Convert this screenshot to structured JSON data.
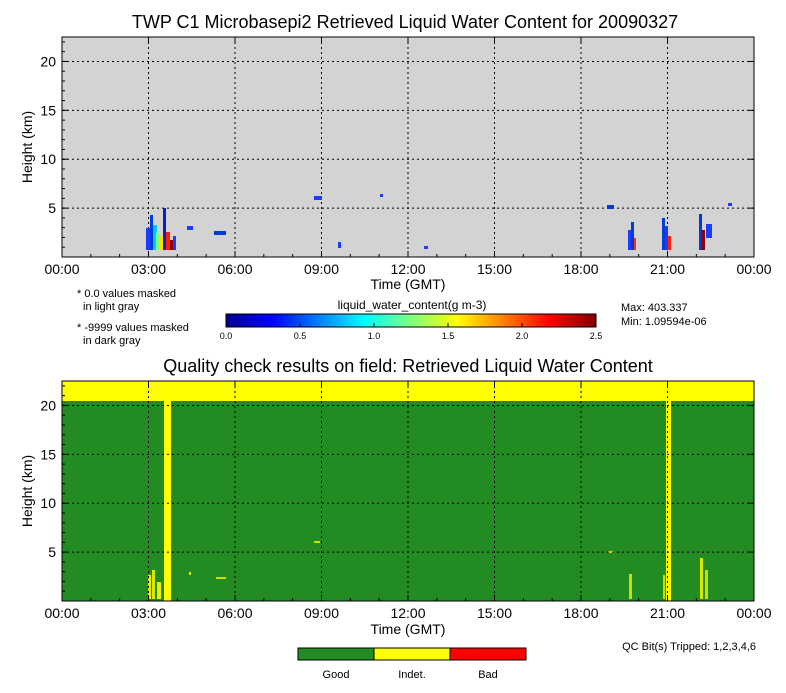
{
  "chart_data": [
    {
      "type": "heatmap",
      "title": "TWP C1 Microbasepi2 Retrieved Liquid Water Content for 20090327",
      "xlabel": "Time (GMT)",
      "ylabel": "Height (km)",
      "xticks": [
        "00:00",
        "03:00",
        "06:00",
        "09:00",
        "12:00",
        "15:00",
        "18:00",
        "21:00",
        "00:00"
      ],
      "yticks": [
        "5",
        "10",
        "15",
        "20"
      ],
      "xlim_hours": [
        0,
        24
      ],
      "ylim_km": [
        0,
        22.5
      ],
      "grid": true,
      "background_color": "#d3d3d3",
      "colorbar": {
        "label": "liquid_water_content(g m-3)",
        "ticks": [
          "0.0",
          "0.5",
          "1.0",
          "1.5",
          "2.0",
          "2.5"
        ],
        "range": [
          0,
          2.5
        ],
        "colormap": "jet"
      },
      "notes": [
        "* 0.0 values masked",
        "in light gray",
        "* -9999 values masked",
        "in dark gray"
      ],
      "max_label": "Max: 403.337",
      "min_label": "Min: 1.09594e-06"
    },
    {
      "type": "heatmap",
      "title": "Quality check results on field: Retrieved Liquid Water Content",
      "xlabel": "Time (GMT)",
      "ylabel": "Height (km)",
      "xticks": [
        "00:00",
        "03:00",
        "06:00",
        "09:00",
        "12:00",
        "15:00",
        "18:00",
        "21:00",
        "00:00"
      ],
      "yticks": [
        "5",
        "10",
        "15",
        "20"
      ],
      "xlim_hours": [
        0,
        24
      ],
      "ylim_km": [
        0,
        22.5
      ],
      "grid": true,
      "qc_bits_label": "QC Bit(s) Tripped: 1,2,3,4,6",
      "legend": [
        {
          "label": "Good",
          "color": "#228b22"
        },
        {
          "label": "Indet.",
          "color": "#ffff00"
        },
        {
          "label": "Bad",
          "color": "#ff0000"
        }
      ],
      "indeterminate_height_km_min": 20.5,
      "indeterminate_time_columns_hours": [
        [
          3.55,
          3.75
        ],
        [
          21.0,
          21.15
        ]
      ]
    }
  ]
}
